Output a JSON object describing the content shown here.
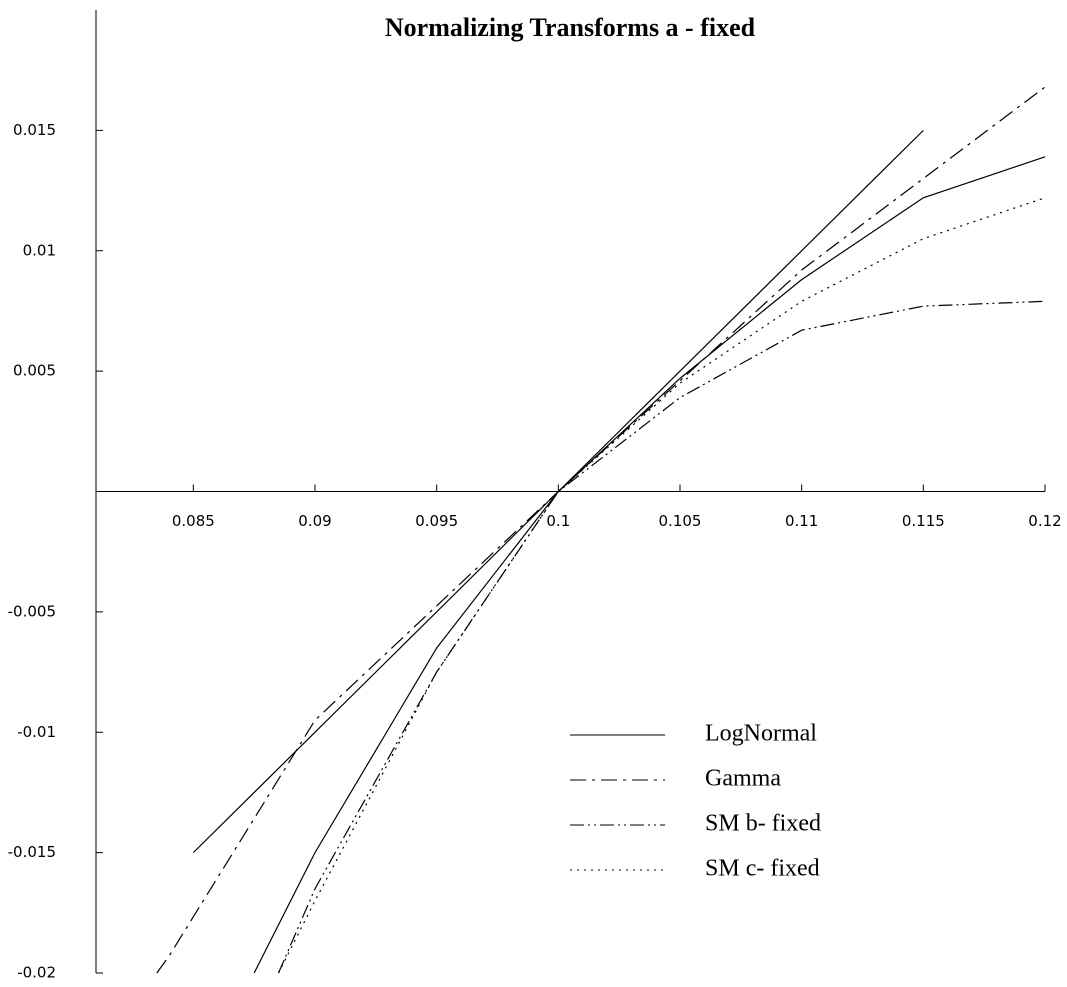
{
  "chart_data": {
    "type": "line",
    "title": "Normalizing Transforms a - fixed",
    "xlim": [
      0.081,
      0.12
    ],
    "xticks": [
      0.085,
      0.09,
      0.095,
      0.1,
      0.105,
      0.11,
      0.115,
      0.12
    ],
    "ylim": [
      -0.02,
      0.02
    ],
    "yticks": [
      -0.02,
      -0.015,
      -0.01,
      -0.005,
      0.005,
      0.01,
      0.015
    ],
    "series": [
      {
        "name": "LogNormal",
        "color": "#000000",
        "style": "solid",
        "x": [
          0.085,
          0.1,
          0.115
        ],
        "values": [
          -0.015,
          0,
          0.015
        ]
      },
      {
        "name": "Gamma",
        "color": "#000000",
        "style": "dashdot",
        "x": [
          0.0835,
          0.084,
          0.09,
          0.1,
          0.11,
          0.12
        ],
        "values": [
          -0.02,
          -0.0193,
          -0.0095,
          0,
          0.0092,
          0.0168
        ]
      },
      {
        "name": "SM b- fixed",
        "color": "#000000",
        "style": "dashdotdot",
        "x": [
          0.0885,
          0.09,
          0.095,
          0.1,
          0.105,
          0.11,
          0.115,
          0.12
        ],
        "values": [
          -0.02,
          -0.0165,
          -0.0075,
          0,
          0.0039,
          0.0067,
          0.0077,
          0.0079
        ]
      },
      {
        "name": "SM c- fixed",
        "color": "#000000",
        "style": "dotted",
        "x": [
          0.0885,
          0.09,
          0.095,
          0.1,
          0.105,
          0.11,
          0.115,
          0.12
        ],
        "values": [
          -0.02,
          -0.017,
          -0.0075,
          0,
          0.0045,
          0.0079,
          0.0105,
          0.0122
        ]
      },
      {
        "color": "#000000",
        "style": "solid",
        "x": [
          0.0875,
          0.09,
          0.095,
          0.1,
          0.105,
          0.11,
          0.115,
          0.12
        ],
        "values": [
          -0.02,
          -0.015,
          -0.0065,
          0,
          0.0047,
          0.0088,
          0.0122,
          0.0139
        ]
      }
    ]
  }
}
